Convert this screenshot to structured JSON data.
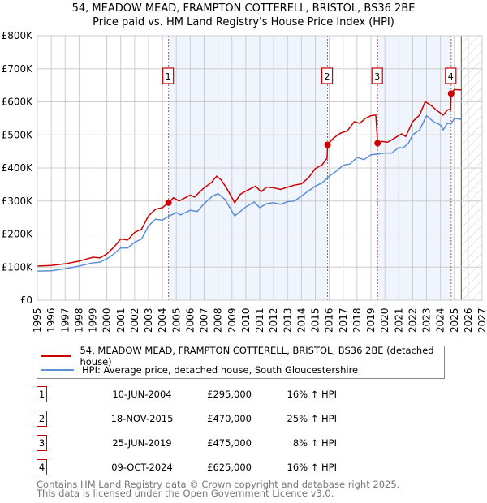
{
  "title": "54, MEADOW MEAD, FRAMPTON COTTERELL, BRISTOL, BS36 2BE",
  "subtitle": "Price paid vs. HM Land Registry's House Price Index (HPI)",
  "chart_data": {
    "type": "line",
    "title": "54, MEADOW MEAD, FRAMPTON COTTERELL, BRISTOL, BS36 2BE",
    "subtitle": "Price paid vs. HM Land Registry's House Price Index (HPI)",
    "xlim": [
      1995,
      2027
    ],
    "ylim": [
      0,
      800000
    ],
    "yticks": [
      0,
      100000,
      200000,
      300000,
      400000,
      500000,
      600000,
      700000,
      800000
    ],
    "ytick_labels": [
      "£0",
      "£100K",
      "£200K",
      "£300K",
      "£400K",
      "£500K",
      "£600K",
      "£700K",
      "£800K"
    ],
    "xticks": [
      "1995",
      "1996",
      "1997",
      "1998",
      "1999",
      "2000",
      "2001",
      "2002",
      "2003",
      "2004",
      "2005",
      "2006",
      "2007",
      "2008",
      "2009",
      "2010",
      "2011",
      "2012",
      "2013",
      "2014",
      "2015",
      "2016",
      "2017",
      "2018",
      "2019",
      "2020",
      "2021",
      "2022",
      "2023",
      "2024",
      "2025",
      "2026",
      "2027"
    ],
    "grid": true,
    "shaded_ranges": [
      [
        2004.44,
        2015.88
      ],
      [
        2019.48,
        2024.77
      ]
    ],
    "hatched_range": [
      2025.5,
      2027
    ],
    "series": [
      {
        "name": "54, MEADOW MEAD, FRAMPTON COTTERELL, BRISTOL, BS36 2BE (detached house)",
        "color": "#cc0000",
        "points": [
          [
            1995,
            103000
          ],
          [
            1996,
            105000
          ],
          [
            1997,
            110000
          ],
          [
            1998,
            118000
          ],
          [
            1999,
            130000
          ],
          [
            1999.5,
            128000
          ],
          [
            2000,
            140000
          ],
          [
            2000.5,
            160000
          ],
          [
            2001,
            185000
          ],
          [
            2001.5,
            182000
          ],
          [
            2002,
            205000
          ],
          [
            2002.5,
            215000
          ],
          [
            2003,
            255000
          ],
          [
            2003.5,
            275000
          ],
          [
            2004,
            280000
          ],
          [
            2004.44,
            295000
          ],
          [
            2004.8,
            310000
          ],
          [
            2005.2,
            300000
          ],
          [
            2006,
            318000
          ],
          [
            2006.3,
            312000
          ],
          [
            2007,
            340000
          ],
          [
            2007.5,
            355000
          ],
          [
            2007.9,
            375000
          ],
          [
            2008.2,
            365000
          ],
          [
            2008.6,
            340000
          ],
          [
            2009.2,
            295000
          ],
          [
            2009.6,
            320000
          ],
          [
            2010,
            330000
          ],
          [
            2010.7,
            345000
          ],
          [
            2011.1,
            328000
          ],
          [
            2011.5,
            342000
          ],
          [
            2012,
            340000
          ],
          [
            2012.5,
            335000
          ],
          [
            2013,
            342000
          ],
          [
            2013.5,
            348000
          ],
          [
            2014,
            352000
          ],
          [
            2014.5,
            370000
          ],
          [
            2015,
            398000
          ],
          [
            2015.5,
            410000
          ],
          [
            2015.85,
            430000
          ],
          [
            2015.88,
            470000
          ],
          [
            2016.3,
            490000
          ],
          [
            2016.8,
            505000
          ],
          [
            2017.3,
            512000
          ],
          [
            2017.8,
            540000
          ],
          [
            2018.2,
            535000
          ],
          [
            2018.6,
            550000
          ],
          [
            2019,
            558000
          ],
          [
            2019.35,
            560000
          ],
          [
            2019.48,
            475000
          ],
          [
            2019.8,
            480000
          ],
          [
            2020.2,
            478000
          ],
          [
            2020.7,
            490000
          ],
          [
            2021.2,
            503000
          ],
          [
            2021.5,
            495000
          ],
          [
            2022,
            540000
          ],
          [
            2022.5,
            560000
          ],
          [
            2022.9,
            600000
          ],
          [
            2023.3,
            590000
          ],
          [
            2023.7,
            575000
          ],
          [
            2024.2,
            560000
          ],
          [
            2024.5,
            575000
          ],
          [
            2024.74,
            578000
          ],
          [
            2024.77,
            625000
          ],
          [
            2025,
            637000
          ],
          [
            2025.5,
            636000
          ]
        ]
      },
      {
        "name": "HPI: Average price, detached house, South Gloucestershire",
        "color": "#5b8fd6",
        "points": [
          [
            1995,
            88000
          ],
          [
            1996,
            89000
          ],
          [
            1997,
            95000
          ],
          [
            1998,
            103000
          ],
          [
            1999,
            113000
          ],
          [
            1999.5,
            115000
          ],
          [
            2000,
            125000
          ],
          [
            2000.5,
            140000
          ],
          [
            2001,
            158000
          ],
          [
            2001.5,
            158000
          ],
          [
            2002,
            175000
          ],
          [
            2002.5,
            185000
          ],
          [
            2003,
            225000
          ],
          [
            2003.5,
            245000
          ],
          [
            2004,
            242000
          ],
          [
            2004.5,
            255000
          ],
          [
            2005,
            265000
          ],
          [
            2005.3,
            258000
          ],
          [
            2006,
            272000
          ],
          [
            2006.5,
            268000
          ],
          [
            2007,
            292000
          ],
          [
            2007.6,
            315000
          ],
          [
            2008,
            322000
          ],
          [
            2008.5,
            305000
          ],
          [
            2009.2,
            255000
          ],
          [
            2009.7,
            272000
          ],
          [
            2010,
            282000
          ],
          [
            2010.6,
            297000
          ],
          [
            2011,
            280000
          ],
          [
            2011.5,
            292000
          ],
          [
            2012,
            295000
          ],
          [
            2012.5,
            290000
          ],
          [
            2013,
            298000
          ],
          [
            2013.5,
            300000
          ],
          [
            2014,
            315000
          ],
          [
            2014.5,
            330000
          ],
          [
            2015,
            345000
          ],
          [
            2015.5,
            355000
          ],
          [
            2016,
            375000
          ],
          [
            2016.5,
            390000
          ],
          [
            2017,
            408000
          ],
          [
            2017.5,
            412000
          ],
          [
            2018,
            432000
          ],
          [
            2018.5,
            425000
          ],
          [
            2019,
            440000
          ],
          [
            2019.5,
            442000
          ],
          [
            2020,
            445000
          ],
          [
            2020.5,
            445000
          ],
          [
            2021,
            462000
          ],
          [
            2021.3,
            460000
          ],
          [
            2021.7,
            475000
          ],
          [
            2022,
            500000
          ],
          [
            2022.5,
            515000
          ],
          [
            2023,
            558000
          ],
          [
            2023.5,
            540000
          ],
          [
            2024,
            530000
          ],
          [
            2024.2,
            515000
          ],
          [
            2024.5,
            535000
          ],
          [
            2024.8,
            535000
          ],
          [
            2025,
            550000
          ],
          [
            2025.5,
            547000
          ]
        ]
      }
    ],
    "sales": [
      {
        "label": "1",
        "x": 2004.44,
        "y": 295000
      },
      {
        "label": "2",
        "x": 2015.88,
        "y": 470000
      },
      {
        "label": "3",
        "x": 2019.48,
        "y": 475000
      },
      {
        "label": "4",
        "x": 2024.77,
        "y": 625000
      }
    ]
  },
  "legend": [
    {
      "label": "54, MEADOW MEAD, FRAMPTON COTTERELL, BRISTOL, BS36 2BE (detached house)",
      "color": "#cc0000"
    },
    {
      "label": "HPI: Average price, detached house, South Gloucestershire",
      "color": "#5b8fd6"
    }
  ],
  "transactions": [
    {
      "num": "1",
      "date": "10-JUN-2004",
      "price": "£295,000",
      "hpi": "16% ↑ HPI"
    },
    {
      "num": "2",
      "date": "18-NOV-2015",
      "price": "£470,000",
      "hpi": "25% ↑ HPI"
    },
    {
      "num": "3",
      "date": "25-JUN-2019",
      "price": "£475,000",
      "hpi": "8% ↑ HPI"
    },
    {
      "num": "4",
      "date": "09-OCT-2024",
      "price": "£625,000",
      "hpi": "16% ↑ HPI"
    }
  ],
  "footer": [
    "Contains HM Land Registry data © Crown copyright and database right 2025.",
    "This data is licensed under the Open Government Licence v3.0."
  ]
}
